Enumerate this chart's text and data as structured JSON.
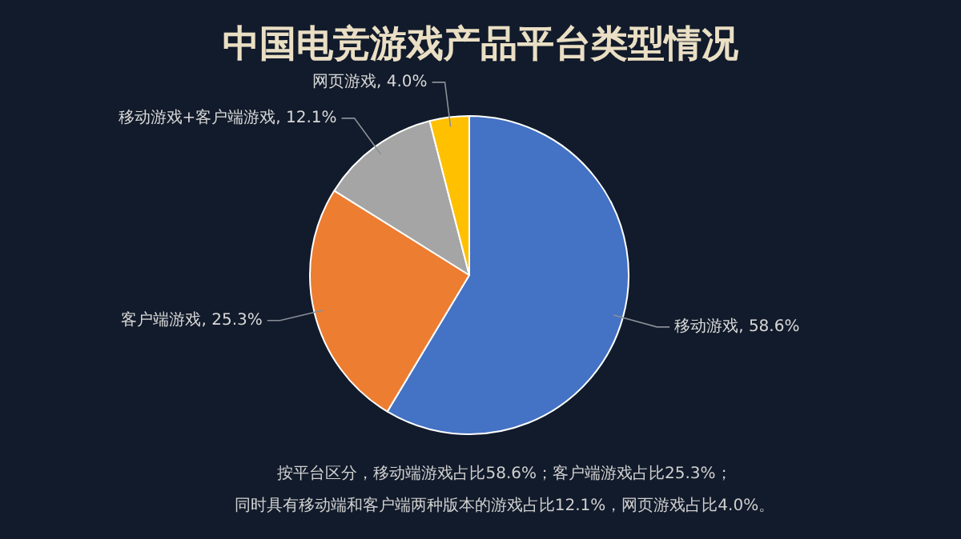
{
  "chart_data": {
    "type": "pie",
    "title": "中国电竞游戏产品平台类型情况",
    "categories": [
      "移动游戏",
      "客户端游戏",
      "移动游戏+客户端游戏",
      "网页游戏"
    ],
    "values": [
      58.6,
      25.3,
      12.1,
      4.0
    ],
    "value_labels": [
      "58.6%",
      "25.3%",
      "12.1%",
      "4.0%"
    ],
    "colors": [
      "#4472c4",
      "#ed7d31",
      "#a5a5a5",
      "#ffc000"
    ],
    "legend": false,
    "annotations": [
      "按平台区分，移动端游戏占比58.6%；客户端游戏占比25.3%；",
      "同时具有移动端和客户端两种版本的游戏占比12.1%，网页游戏占比4.0%。"
    ]
  }
}
